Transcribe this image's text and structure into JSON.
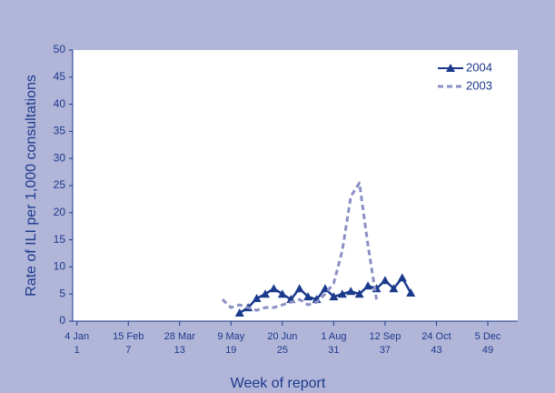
{
  "chart_data": {
    "type": "line",
    "xlabel": "Week of report",
    "ylabel": "Rate of ILI per 1,000 consultations",
    "xlim": [
      0.5,
      52.5
    ],
    "xticks": [
      {
        "value": 1,
        "label": "4 Jan"
      },
      {
        "value": 7,
        "label": "15 Feb"
      },
      {
        "value": 13,
        "label": "28 Mar"
      },
      {
        "value": 19,
        "label": "9 May"
      },
      {
        "value": 25,
        "label": "20 Jun"
      },
      {
        "value": 31,
        "label": "1 Aug"
      },
      {
        "value": 37,
        "label": "12 Sep"
      },
      {
        "value": 43,
        "label": "24 Oct"
      },
      {
        "value": 49,
        "label": "5 Dec"
      }
    ],
    "ylim": [
      0,
      50
    ],
    "yticks": [
      0,
      5,
      10,
      15,
      20,
      25,
      30,
      35,
      40,
      45,
      50
    ],
    "legend": "upper right",
    "series": [
      {
        "name": "2004",
        "color": "#1c3a8c",
        "style": "solid",
        "marker": "triangle",
        "x": [
          20,
          21,
          22,
          23,
          24,
          25,
          26,
          27,
          28,
          29,
          30,
          31,
          32,
          33,
          34,
          35,
          36,
          37,
          38,
          39,
          40
        ],
        "values": [
          1.5,
          2.5,
          4.2,
          5,
          6,
          5,
          4,
          6,
          4.5,
          4,
          6,
          4.5,
          5,
          5.5,
          5,
          6.5,
          6,
          7.5,
          6,
          8,
          5.2
        ]
      },
      {
        "name": "2003",
        "color": "#8a8fc4",
        "style": "dashed",
        "marker": "none",
        "x": [
          18,
          19,
          20,
          21,
          22,
          23,
          24,
          25,
          26,
          27,
          28,
          29,
          30,
          31,
          32,
          33,
          34,
          35,
          36
        ],
        "values": [
          4,
          2.5,
          3,
          2.5,
          2,
          2.5,
          2.5,
          3,
          3.5,
          4,
          3,
          3.5,
          5,
          7,
          13,
          23,
          25.5,
          14,
          4
        ]
      }
    ]
  }
}
